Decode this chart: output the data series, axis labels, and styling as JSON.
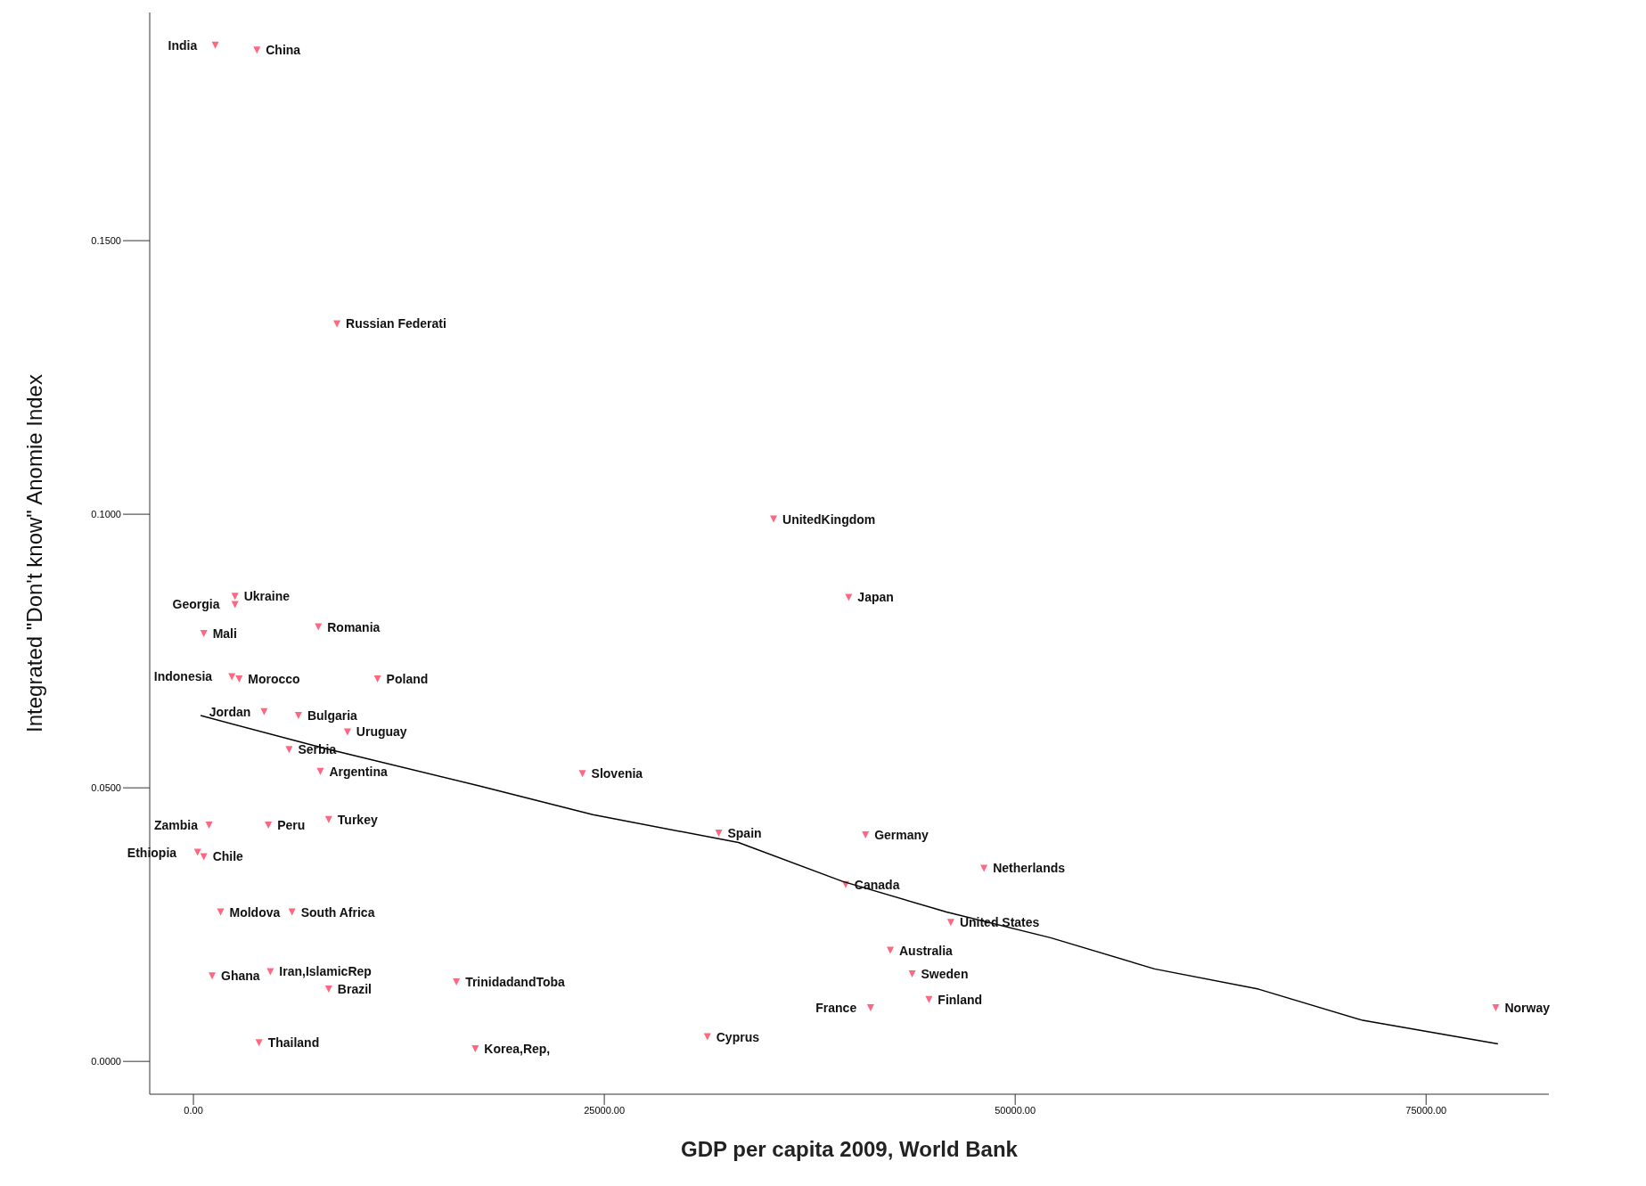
{
  "chart_data": {
    "type": "scatter",
    "xlabel": "GDP per capita 2009, World Bank",
    "ylabel": "Integrated \"Don't know\" Anomie Index",
    "xlim": [
      -2660,
      82470
    ],
    "ylim": [
      -0.006,
      0.1917
    ],
    "xticks": [
      {
        "value": 0,
        "label": "0.00"
      },
      {
        "value": 25000,
        "label": "25000.00"
      },
      {
        "value": 50000,
        "label": "50000.00"
      },
      {
        "value": 75000,
        "label": "75000.00"
      }
    ],
    "yticks": [
      {
        "value": 0,
        "label": "0.0000"
      },
      {
        "value": 0.05,
        "label": "0.0500"
      },
      {
        "value": 0.1,
        "label": "0.1000"
      },
      {
        "value": 0.15,
        "label": "0.1500"
      }
    ],
    "grid": false,
    "legend": false,
    "marker": "triangle",
    "series": [
      {
        "color": "#ff6680",
        "x": [
          1330,
          3860,
          8730,
          35300,
          39870,
          2530,
          2530,
          630,
          7600,
          11200,
          2340,
          2780,
          4300,
          6390,
          9370,
          5820,
          7720,
          23670,
          950,
          4560,
          8230,
          250,
          630,
          1650,
          6000,
          1140,
          4680,
          8230,
          16000,
          3990,
          17150,
          31270,
          31960,
          40890,
          48100,
          39680,
          46080,
          42400,
          43730,
          44750,
          41200,
          79240
        ],
        "values": [
          0.1857,
          0.1848,
          0.1348,
          0.0991,
          0.0848,
          0.085,
          0.0835,
          0.0782,
          0.0794,
          0.0699,
          0.0703,
          0.0699,
          0.0639,
          0.0632,
          0.0602,
          0.057,
          0.053,
          0.0526,
          0.0432,
          0.0432,
          0.0442,
          0.0382,
          0.0374,
          0.0273,
          0.0273,
          0.0156,
          0.0164,
          0.0132,
          0.0145,
          0.0034,
          0.0023,
          0.0045,
          0.0417,
          0.0414,
          0.0353,
          0.0323,
          0.0254,
          0.0203,
          0.016,
          0.0113,
          0.0098,
          0.0098
        ]
      },
      {
        "type": "line",
        "color": "#000000",
        "marker": "none",
        "x": [
          440,
          7850,
          17340,
          24300,
          33160,
          39490,
          45820,
          52150,
          58480,
          64810,
          71140,
          79370
        ],
        "values": [
          0.0632,
          0.0573,
          0.0504,
          0.0451,
          0.04,
          0.0329,
          0.0273,
          0.0226,
          0.0169,
          0.0132,
          0.0075,
          0.0032
        ]
      }
    ],
    "annotations": [
      {
        "text": "India",
        "x": 1330,
        "y": 0.1857
      },
      {
        "text": "China",
        "x": 3860,
        "y": 0.1848
      },
      {
        "text": "Russian Federati",
        "x": 8730,
        "y": 0.1348
      },
      {
        "text": "UnitedKingdom",
        "x": 35300,
        "y": 0.0991
      },
      {
        "text": "Japan",
        "x": 39870,
        "y": 0.0848
      },
      {
        "text": "Ukraine",
        "x": 2530,
        "y": 0.085
      },
      {
        "text": "Georgia",
        "x": 2530,
        "y": 0.0835
      },
      {
        "text": "Mali",
        "x": 630,
        "y": 0.0782
      },
      {
        "text": "Romania",
        "x": 7600,
        "y": 0.0794
      },
      {
        "text": "Poland",
        "x": 11200,
        "y": 0.0699
      },
      {
        "text": "Indonesia",
        "x": 2340,
        "y": 0.0703
      },
      {
        "text": "Morocco",
        "x": 2780,
        "y": 0.0699
      },
      {
        "text": "Jordan",
        "x": 4300,
        "y": 0.0639
      },
      {
        "text": "Bulgaria",
        "x": 6390,
        "y": 0.0632
      },
      {
        "text": "Uruguay",
        "x": 9370,
        "y": 0.0602
      },
      {
        "text": "Serbia",
        "x": 5820,
        "y": 0.057
      },
      {
        "text": "Argentina",
        "x": 7720,
        "y": 0.053
      },
      {
        "text": "Slovenia",
        "x": 23670,
        "y": 0.0526
      },
      {
        "text": "Zambia",
        "x": 950,
        "y": 0.0432
      },
      {
        "text": "Peru",
        "x": 4560,
        "y": 0.0432
      },
      {
        "text": "Turkey",
        "x": 8230,
        "y": 0.0442
      },
      {
        "text": "Ethiopia",
        "x": 250,
        "y": 0.0382
      },
      {
        "text": "Chile",
        "x": 630,
        "y": 0.0374
      },
      {
        "text": "Moldova",
        "x": 1650,
        "y": 0.0273
      },
      {
        "text": "South Africa",
        "x": 6000,
        "y": 0.0273
      },
      {
        "text": "Ghana",
        "x": 1140,
        "y": 0.0156
      },
      {
        "text": "Iran,IslamicRep",
        "x": 4680,
        "y": 0.0164
      },
      {
        "text": "Brazil",
        "x": 8230,
        "y": 0.0132
      },
      {
        "text": "TrinidadandToba",
        "x": 16000,
        "y": 0.0145
      },
      {
        "text": "Thailand",
        "x": 3990,
        "y": 0.0034
      },
      {
        "text": "Korea,Rep,",
        "x": 17150,
        "y": 0.0023
      },
      {
        "text": "Cyprus",
        "x": 31270,
        "y": 0.0045
      },
      {
        "text": "Spain",
        "x": 31960,
        "y": 0.0417
      },
      {
        "text": "Germany",
        "x": 40890,
        "y": 0.0414
      },
      {
        "text": "Netherlands",
        "x": 48100,
        "y": 0.0353
      },
      {
        "text": "Canada",
        "x": 39680,
        "y": 0.0323
      },
      {
        "text": "United States",
        "x": 46080,
        "y": 0.0254
      },
      {
        "text": "Australia",
        "x": 42400,
        "y": 0.0203
      },
      {
        "text": "Sweden",
        "x": 43730,
        "y": 0.016
      },
      {
        "text": "Finland",
        "x": 44750,
        "y": 0.0113
      },
      {
        "text": "France",
        "x": 41200,
        "y": 0.0098
      },
      {
        "text": "Norway",
        "x": 79240,
        "y": 0.0098
      }
    ]
  }
}
